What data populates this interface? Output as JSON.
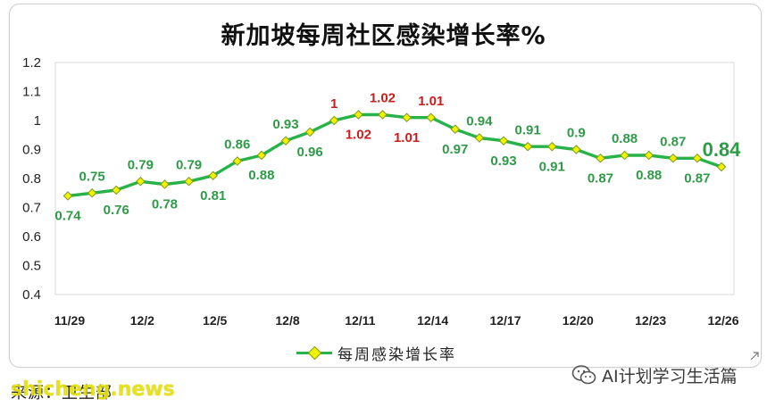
{
  "chart_data": {
    "type": "line",
    "title": "新加坡每周社区感染增长率%",
    "x": [
      "11/29",
      "11/30",
      "12/1",
      "12/2",
      "12/3",
      "12/4",
      "12/5",
      "12/6",
      "12/7",
      "12/8",
      "12/9",
      "12/10",
      "12/11",
      "12/12",
      "12/13",
      "12/14",
      "12/15",
      "12/16",
      "12/17",
      "12/18",
      "12/19",
      "12/20",
      "12/21",
      "12/22",
      "12/23",
      "12/24",
      "12/25",
      "12/26"
    ],
    "x_tick_labels": [
      "11/29",
      "12/2",
      "12/5",
      "12/8",
      "12/11",
      "12/14",
      "12/17",
      "12/20",
      "12/23",
      "12/26"
    ],
    "y_ticks": [
      "0.4",
      "0.5",
      "0.6",
      "0.7",
      "0.8",
      "0.9",
      "1",
      "1.1",
      "1.2"
    ],
    "ylim": [
      0.4,
      1.2
    ],
    "grid": false,
    "legend_position": "bottom-center",
    "series": [
      {
        "name": "每周感染增长率",
        "values": [
          0.74,
          0.75,
          0.76,
          0.79,
          0.78,
          0.79,
          0.81,
          0.86,
          0.88,
          0.93,
          0.96,
          1.0,
          1.02,
          1.02,
          1.01,
          1.01,
          0.97,
          0.94,
          0.93,
          0.91,
          0.91,
          0.9,
          0.87,
          0.88,
          0.88,
          0.87,
          0.87,
          0.84
        ],
        "labels": [
          "0.74",
          "0.75",
          "0.76",
          "0.79",
          "0.78",
          "0.79",
          "0.81",
          "0.86",
          "0.88",
          "0.93",
          "0.96",
          "1",
          "1.02",
          "1.02",
          "1.01",
          "1.01",
          "0.97",
          "0.94",
          "0.93",
          "0.91",
          "0.91",
          "0.9",
          "0.87",
          "0.88",
          "0.88",
          "0.87",
          "0.87",
          "0.84"
        ],
        "label_positions": [
          "below",
          "above",
          "below",
          "above",
          "below",
          "above",
          "below",
          "above",
          "below",
          "above",
          "below",
          "above",
          "below",
          "above",
          "below",
          "above",
          "below",
          "above",
          "below",
          "above",
          "below",
          "above",
          "below",
          "above",
          "below",
          "above",
          "below",
          "above"
        ],
        "highlight_indices": [
          11,
          12,
          13,
          14,
          15
        ],
        "emphasis_index": 27
      }
    ]
  },
  "colors": {
    "line": "#27b34a",
    "marker_fill": "#f2f200",
    "marker_stroke": "#7a9a1a",
    "label_normal": "#2f9a48",
    "label_highlight": "#cc1d1d",
    "axis_text": "#222222"
  },
  "legend": {
    "label": "每周感染增长率"
  },
  "source_note": "来源：卫生部",
  "watermark": "shicheng.news",
  "brand": {
    "icon": "wechat-icon",
    "label": "AI计划学习生活篇"
  }
}
